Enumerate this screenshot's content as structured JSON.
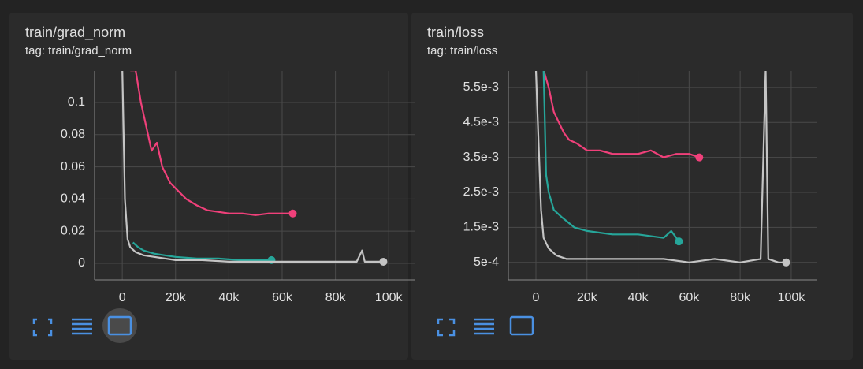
{
  "chart_data": [
    {
      "type": "line",
      "title": "train/grad_norm",
      "subtitle": "tag: train/grad_norm",
      "xlim": [
        -10400,
        110000
      ],
      "xticks": [
        0,
        {
          "value": 20000,
          "label": "20k"
        },
        {
          "value": 40000,
          "label": "40k"
        },
        {
          "value": 60000,
          "label": "60k"
        },
        {
          "value": 80000,
          "label": "80k"
        },
        {
          "value": 100000,
          "label": "100k"
        }
      ],
      "ylim": [
        -0.0103,
        0.1196
      ],
      "yticks": [
        0,
        0.02,
        0.04,
        0.06,
        0.08,
        0.1
      ],
      "grid": true,
      "series": [
        {
          "color": "#f0407a",
          "x": [
            3000,
            5000,
            7000,
            9000,
            11000,
            13000,
            15000,
            18000,
            21000,
            24000,
            28000,
            32000,
            36000,
            40000,
            45000,
            50000,
            55000,
            60000,
            64000
          ],
          "values": [
            0.12,
            0.12,
            0.1,
            0.085,
            0.07,
            0.075,
            0.06,
            0.05,
            0.045,
            0.04,
            0.036,
            0.033,
            0.032,
            0.031,
            0.031,
            0.03,
            0.031,
            0.031,
            0.031
          ]
        },
        {
          "color": "#26a69a",
          "x": [
            4000,
            6000,
            8000,
            12000,
            16000,
            20000,
            28000,
            36000,
            44000,
            50000,
            56000
          ],
          "values": [
            0.013,
            0.01,
            0.008,
            0.006,
            0.005,
            0.004,
            0.003,
            0.003,
            0.002,
            0.002,
            0.002
          ]
        },
        {
          "color": "#c4c4c4",
          "x": [
            0,
            1000,
            2000,
            3000,
            5000,
            8000,
            12000,
            20000,
            30000,
            40000,
            50000,
            60000,
            70000,
            80000,
            88000,
            90000,
            91000,
            95000,
            98000
          ],
          "values": [
            0.12,
            0.04,
            0.015,
            0.01,
            0.007,
            0.005,
            0.004,
            0.002,
            0.002,
            0.001,
            0.001,
            0.001,
            0.001,
            0.001,
            0.001,
            0.008,
            0.001,
            0.001,
            0.001
          ]
        }
      ]
    },
    {
      "type": "line",
      "title": "train/loss",
      "subtitle": "tag: train/loss",
      "xlim": [
        -10800,
        109900
      ],
      "xticks": [
        0,
        {
          "value": 20000,
          "label": "20k"
        },
        {
          "value": 40000,
          "label": "40k"
        },
        {
          "value": 60000,
          "label": "60k"
        },
        {
          "value": 80000,
          "label": "80k"
        },
        {
          "value": 100000,
          "label": "100k"
        }
      ],
      "ylim": [
        0,
        0.00597
      ],
      "yticks": [
        {
          "value": 0.0005,
          "label": "5e-4"
        },
        {
          "value": 0.0015,
          "label": "1.5e-3"
        },
        {
          "value": 0.0025,
          "label": "2.5e-3"
        },
        {
          "value": 0.0035,
          "label": "3.5e-3"
        },
        {
          "value": 0.0045,
          "label": "4.5e-3"
        },
        {
          "value": 0.0055,
          "label": "5.5e-3"
        }
      ],
      "grid": true,
      "series": [
        {
          "color": "#f0407a",
          "x": [
            3000,
            5000,
            7000,
            9000,
            11000,
            13000,
            16000,
            20000,
            25000,
            30000,
            35000,
            40000,
            45000,
            50000,
            55000,
            60000,
            64000
          ],
          "values": [
            0.006,
            0.0055,
            0.0048,
            0.0045,
            0.0042,
            0.004,
            0.0039,
            0.0037,
            0.0037,
            0.0036,
            0.0036,
            0.0036,
            0.0037,
            0.0035,
            0.0036,
            0.0036,
            0.0035
          ]
        },
        {
          "color": "#26a69a",
          "x": [
            3000,
            4000,
            5000,
            7000,
            10000,
            15000,
            20000,
            30000,
            40000,
            50000,
            53000,
            56000
          ],
          "values": [
            0.006,
            0.003,
            0.0025,
            0.002,
            0.0018,
            0.0015,
            0.0014,
            0.0013,
            0.0013,
            0.0012,
            0.0014,
            0.0011
          ]
        },
        {
          "color": "#c4c4c4",
          "x": [
            0,
            1000,
            2000,
            3000,
            5000,
            8000,
            12000,
            20000,
            30000,
            40000,
            50000,
            60000,
            70000,
            80000,
            88000,
            90000,
            91000,
            95000,
            98000
          ],
          "values": [
            0.006,
            0.004,
            0.002,
            0.0012,
            0.0009,
            0.0007,
            0.0006,
            0.0006,
            0.0006,
            0.0006,
            0.0006,
            0.0005,
            0.0006,
            0.0005,
            0.0006,
            0.006,
            0.0006,
            0.0005,
            0.0005
          ]
        }
      ]
    }
  ]
}
